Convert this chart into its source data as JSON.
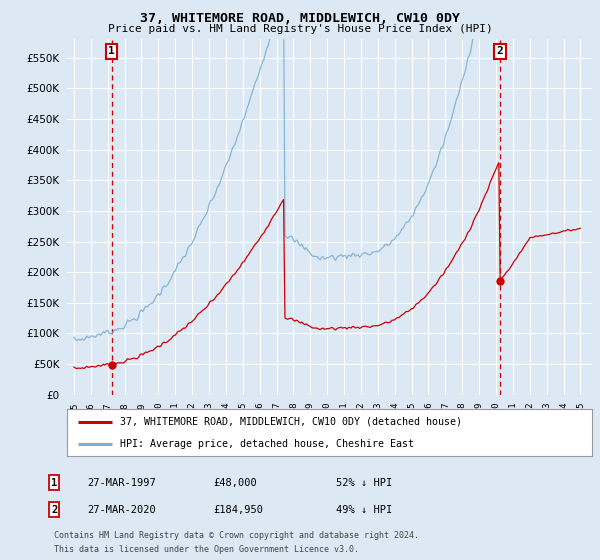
{
  "title_line1": "37, WHITEMORE ROAD, MIDDLEWICH, CW10 0DY",
  "title_line2": "Price paid vs. HM Land Registry's House Price Index (HPI)",
  "background_color": "#dce9f5",
  "plot_bg_color": "#dce9f5",
  "grid_color": "#ffffff",
  "red_line_color": "#cc0000",
  "blue_line_color": "#7bafd4",
  "marker_color": "#cc0000",
  "dashed_line_color": "#cc0000",
  "ylim": [
    0,
    580000
  ],
  "yticks": [
    0,
    50000,
    100000,
    150000,
    200000,
    250000,
    300000,
    350000,
    400000,
    450000,
    500000,
    550000
  ],
  "ytick_labels": [
    "£0",
    "£50K",
    "£100K",
    "£150K",
    "£200K",
    "£250K",
    "£300K",
    "£350K",
    "£400K",
    "£450K",
    "£500K",
    "£550K"
  ],
  "xlim_start": 1994.6,
  "xlim_end": 2025.7,
  "t1_year": 1997.23,
  "t1_price": 48000,
  "t2_year": 2020.23,
  "t2_price": 184950,
  "legend_line1": "37, WHITEMORE ROAD, MIDDLEWICH, CW10 0DY (detached house)",
  "legend_line2": "HPI: Average price, detached house, Cheshire East",
  "footer1": "Contains HM Land Registry data © Crown copyright and database right 2024.",
  "footer2": "This data is licensed under the Open Government Licence v3.0.",
  "annot1_date": "27-MAR-1997",
  "annot1_price": "£48,000",
  "annot1_hpi": "52% ↓ HPI",
  "annot2_date": "27-MAR-2020",
  "annot2_price": "£184,950",
  "annot2_hpi": "49% ↓ HPI"
}
